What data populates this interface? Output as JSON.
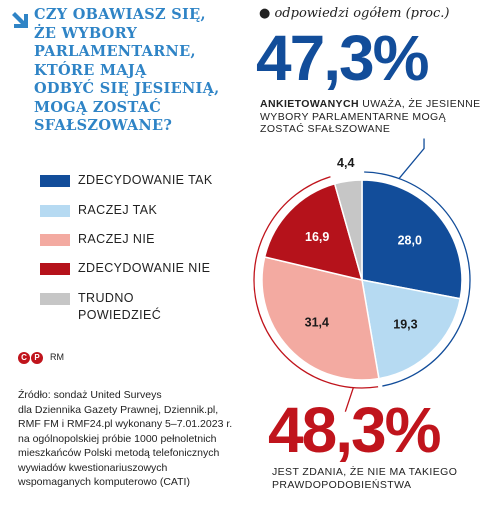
{
  "header": {
    "title_lines": [
      "CZY OBAWIASZ SIĘ,",
      "ŻE WYBORY",
      "PARLAMENTARNE,",
      "KTÓRE MAJĄ",
      "ODBYĆ SIĘ JESIENIĄ,",
      "MOGĄ ZOSTAĆ",
      "SFAŁSZOWANE?"
    ],
    "subtitle": "odpowiedzi ogółem (proc.)"
  },
  "callouts": {
    "top_value": "47,3%",
    "top_desc_bold": "ANKIETOWANYCH",
    "top_desc_rest": " UWAŻA, ŻE JESIENNE WYBORY PARLAMENTARNE MOGĄ ZOSTAĆ SFAŁSZOWANE",
    "bottom_value": "48,3%",
    "bottom_desc": "JEST ZDANIA, ŻE NIE MA TAKIEGO PRAWDOPODOBIEŃSTWA"
  },
  "chart_data": {
    "type": "pie",
    "series": [
      {
        "name": "ZDECYDOWANIE TAK",
        "label": "28,0",
        "value": 28.0,
        "color": "#124d9a"
      },
      {
        "name": "RACZEJ TAK",
        "label": "19,3",
        "value": 19.3,
        "color": "#b6daf2"
      },
      {
        "name": "RACZEJ NIE",
        "label": "31,4",
        "value": 31.4,
        "color": "#f3aaa1"
      },
      {
        "name": "ZDECYDOWANIE NIE",
        "label": "16,9",
        "value": 16.9,
        "color": "#b5121b"
      },
      {
        "name": "TRUDNO POWIEDZIEĆ",
        "label": "4,4",
        "value": 4.4,
        "color": "#c6c6c6"
      }
    ]
  },
  "legend": {
    "items": [
      {
        "label": "ZDECYDOWANIE TAK",
        "color": "#124d9a"
      },
      {
        "label": "RACZEJ TAK",
        "color": "#b6daf2"
      },
      {
        "label": "RACZEJ NIE",
        "color": "#f3aaa1"
      },
      {
        "label": "ZDECYDOWANIE NIE",
        "color": "#b5121b"
      },
      {
        "label_lines": [
          "TRUDNO",
          "POWIEDZIEĆ"
        ],
        "color": "#c6c6c6"
      }
    ]
  },
  "footer": {
    "copyright_c": "C",
    "copyright_p": "P",
    "copyright_rm": "RM",
    "source_lines": [
      "Źródło: sondaż United Surveys",
      "dla Dziennika Gazety Prawnej, Dziennik.pl,",
      "RMF FM i RMF24.pl wykonany 5–7.01.2023 r.",
      "na ogólnopolskiej próbie 1000 pełnoletnich",
      "mieszkańców Polski metodą telefonicznych",
      "wywiadów kwestionariuszowych",
      "wspomaganych komputerowo (CATI)"
    ]
  },
  "colors": {
    "title_blue": "#2f84c6",
    "dark_blue": "#124d9a",
    "red": "#c0141c"
  }
}
